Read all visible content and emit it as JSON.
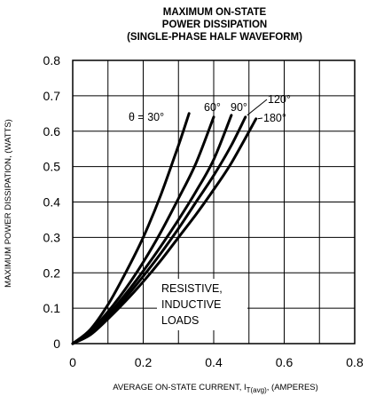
{
  "chart_data": {
    "type": "line",
    "title": [
      "MAXIMUM ON-STATE",
      "POWER DISSIPATION",
      "(SINGLE-PHASE HALF WAVEFORM)"
    ],
    "xlabel": "AVERAGE ON-STATE CURRENT, I",
    "xlabel_sub": "T(avg)",
    "xlabel_tail": ", (AMPERES)",
    "ylabel": "MAXIMUM POWER DISSIPATION, (WATTS)",
    "xlim": [
      0,
      0.8
    ],
    "ylim": [
      0,
      0.8
    ],
    "x_ticks": [
      "0",
      "0.2",
      "0.4",
      "0.6",
      "0.8"
    ],
    "y_ticks": [
      "0",
      "0.1",
      "0.2",
      "0.3",
      "0.4",
      "0.5",
      "0.6",
      "0.7",
      "0.8"
    ],
    "grid": true,
    "annotation": [
      "RESISTIVE,",
      "INDUCTIVE",
      "LOADS"
    ],
    "series": [
      {
        "name": "θ = 30°",
        "x": [
          0,
          0.05,
          0.1,
          0.15,
          0.2,
          0.25,
          0.3,
          0.33
        ],
        "y": [
          0,
          0.04,
          0.11,
          0.2,
          0.3,
          0.42,
          0.56,
          0.65
        ]
      },
      {
        "name": "60°",
        "x": [
          0,
          0.05,
          0.1,
          0.15,
          0.2,
          0.25,
          0.3,
          0.35,
          0.4
        ],
        "y": [
          0,
          0.035,
          0.09,
          0.155,
          0.23,
          0.315,
          0.41,
          0.51,
          0.64
        ]
      },
      {
        "name": "90°",
        "x": [
          0,
          0.05,
          0.1,
          0.15,
          0.2,
          0.25,
          0.3,
          0.35,
          0.4,
          0.45
        ],
        "y": [
          0,
          0.03,
          0.08,
          0.14,
          0.205,
          0.275,
          0.35,
          0.43,
          0.52,
          0.645
        ]
      },
      {
        "name": "120°",
        "x": [
          0,
          0.05,
          0.1,
          0.15,
          0.2,
          0.25,
          0.3,
          0.35,
          0.4,
          0.45,
          0.49
        ],
        "y": [
          0,
          0.028,
          0.075,
          0.13,
          0.19,
          0.255,
          0.325,
          0.4,
          0.475,
          0.56,
          0.64
        ]
      },
      {
        "name": "180°",
        "x": [
          0,
          0.05,
          0.1,
          0.15,
          0.2,
          0.25,
          0.3,
          0.35,
          0.4,
          0.45,
          0.52
        ],
        "y": [
          0,
          0.025,
          0.07,
          0.12,
          0.175,
          0.235,
          0.3,
          0.365,
          0.435,
          0.51,
          0.635
        ]
      }
    ]
  }
}
